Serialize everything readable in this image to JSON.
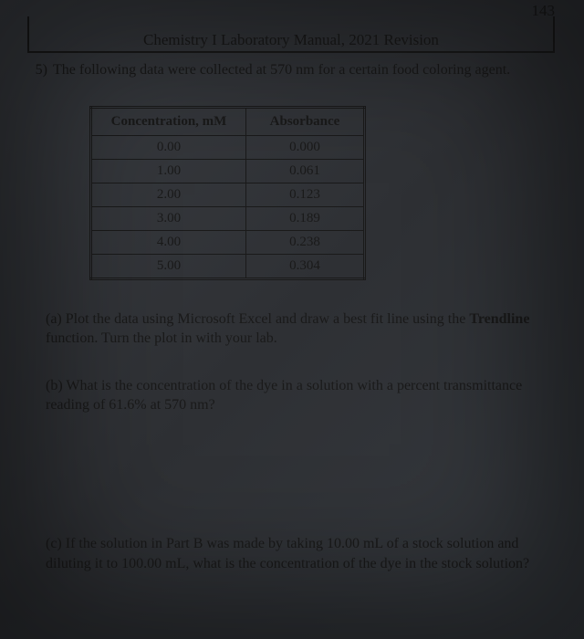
{
  "page_number": "143",
  "header_title": "Chemistry I Laboratory Manual, 2021 Revision",
  "question_number": "5)",
  "question_text": "The following data were collected at 570 nm for a certain food coloring agent.",
  "table": {
    "columns": [
      "Concentration, mM",
      "Absorbance"
    ],
    "rows": [
      [
        "0.00",
        "0.000"
      ],
      [
        "1.00",
        "0.061"
      ],
      [
        "2.00",
        "0.123"
      ],
      [
        "3.00",
        "0.189"
      ],
      [
        "4.00",
        "0.238"
      ],
      [
        "5.00",
        "0.304"
      ]
    ]
  },
  "part_a_prefix": "(a) Plot the data using Microsoft Excel and draw a best fit line using the ",
  "part_a_bold": "Trendline",
  "part_a_suffix": " function. Turn the plot in with your lab.",
  "part_b": "(b) What is the concentration of the dye in a solution with a percent transmittance reading of 61.6% at 570 nm?",
  "part_c": "(c) If the solution in Part B was made by taking 10.00 mL of a stock solution and diluting it to 100.00 mL, what is the concentration of the dye in the stock solution?",
  "colors": {
    "text": "#1a1a1a",
    "bg_gradient_start": "#3a3d42",
    "bg_gradient_end": "#363a3f",
    "border": "#1a1a1a"
  }
}
